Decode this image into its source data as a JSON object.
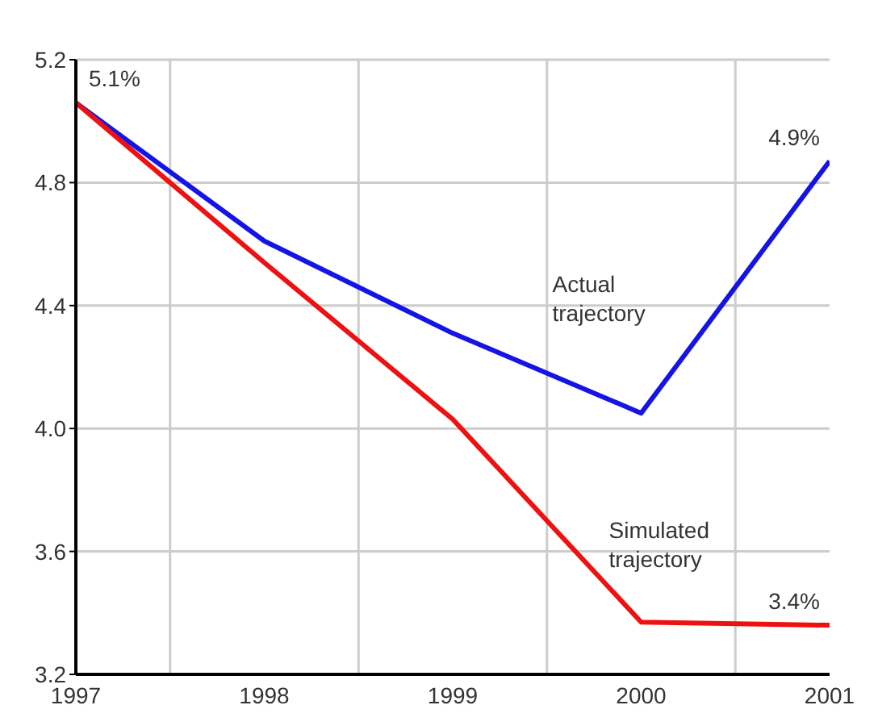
{
  "chart_data": {
    "type": "line",
    "categories": [
      "1997",
      "1998",
      "1999",
      "2000",
      "2001"
    ],
    "series": [
      {
        "name": "Actual trajectory",
        "color": "#1414e6",
        "values": [
          5.06,
          4.61,
          4.31,
          4.05,
          4.87
        ]
      },
      {
        "name": "Simulated trajectory",
        "color": "#ee1111",
        "values": [
          5.06,
          4.54,
          4.03,
          3.37,
          3.36
        ]
      }
    ],
    "ylim": [
      3.2,
      5.2
    ],
    "yticks": [
      {
        "value": 3.2,
        "label": "3.2"
      },
      {
        "value": 3.6,
        "label": "3.6"
      },
      {
        "value": 4.0,
        "label": "4.0"
      },
      {
        "value": 4.4,
        "label": "4.4"
      },
      {
        "value": 4.8,
        "label": "4.8"
      },
      {
        "value": 5.2,
        "label": "5.2"
      }
    ],
    "annotations": [
      {
        "text": "5.1%",
        "x": "1997",
        "y": 5.06
      },
      {
        "text": "4.9%",
        "x": "2001",
        "y": 4.87
      },
      {
        "text": "3.4%",
        "x": "2001",
        "y": 3.36
      }
    ],
    "grid": true,
    "marker": "none",
    "line_style": "solid",
    "legend": false
  }
}
